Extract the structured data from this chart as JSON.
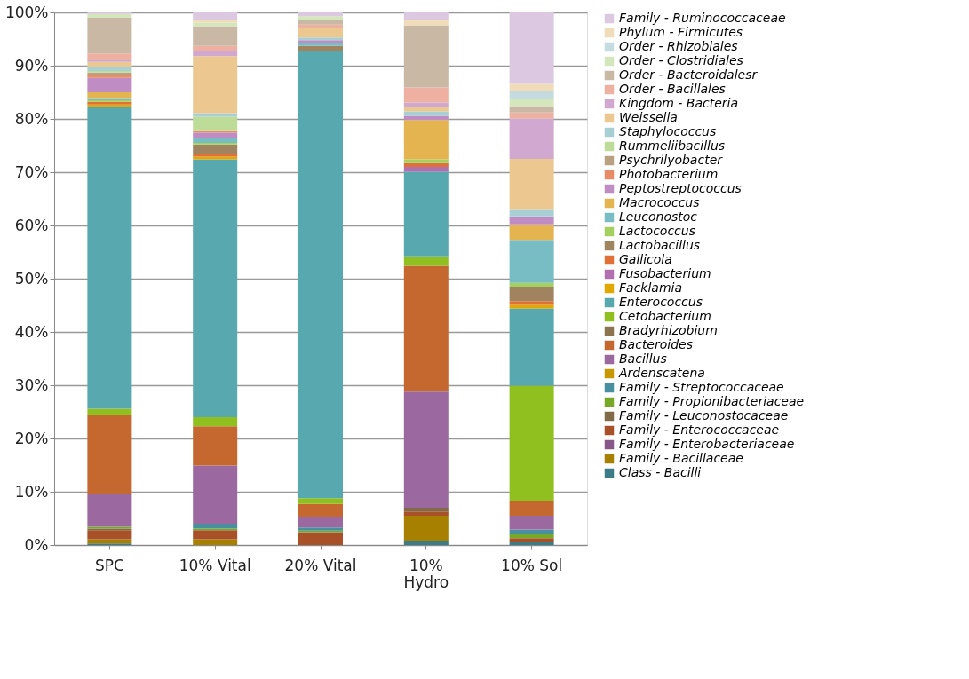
{
  "chart_data": {
    "type": "bar",
    "stacked": true,
    "categories": [
      "SPC",
      "10% Vital",
      "20% Vital",
      "10%\nHydro",
      "10% Sol"
    ],
    "ylim": [
      0,
      100
    ],
    "yticks": [
      {
        "value": 0,
        "label": "0%"
      },
      {
        "value": 10,
        "label": "10%"
      },
      {
        "value": 20,
        "label": "20%"
      },
      {
        "value": 30,
        "label": "30%"
      },
      {
        "value": 40,
        "label": "40%"
      },
      {
        "value": 50,
        "label": "50%"
      },
      {
        "value": 60,
        "label": "60%"
      },
      {
        "value": 70,
        "label": "70%"
      },
      {
        "value": 80,
        "label": "80%"
      },
      {
        "value": 90,
        "label": "90%"
      },
      {
        "value": 100,
        "label": "100%"
      }
    ],
    "grid": "y",
    "legend": "right",
    "series": [
      {
        "name": "Class - Bacilli",
        "color": "#3c7c88",
        "values": [
          0.3,
          null,
          null,
          0.8,
          0.5
        ]
      },
      {
        "name": "Family - Bacillaceae",
        "color": "#a88000",
        "values": [
          0.8,
          1.1,
          null,
          4.7,
          null
        ]
      },
      {
        "name": "Family - Enterobacteriaceae",
        "color": "#885888",
        "values": [
          null,
          null,
          null,
          null,
          null
        ]
      },
      {
        "name": "Family - Enterococcaceae",
        "color": "#a85028",
        "values": [
          1.7,
          1.7,
          2.4,
          0.8,
          0.8
        ]
      },
      {
        "name": "Family - Leuconostocaceae",
        "color": "#806a48",
        "values": [
          0.3,
          null,
          null,
          0.7,
          null
        ]
      },
      {
        "name": "Family - Propionibacteriaceae",
        "color": "#78a828",
        "values": [
          0.3,
          0.3,
          0.3,
          null,
          0.7
        ]
      },
      {
        "name": "Family - Streptococcaceae",
        "color": "#4890a0",
        "values": [
          null,
          0.9,
          0.6,
          null,
          0.9
        ]
      },
      {
        "name": "Ardenscatena",
        "color": "#c89800",
        "values": [
          null,
          null,
          null,
          null,
          null
        ]
      },
      {
        "name": "Bacillus",
        "color": "#9c68a0",
        "values": [
          6.1,
          10.9,
          1.9,
          21.8,
          2.6
        ]
      },
      {
        "name": "Bacteroides",
        "color": "#c46830",
        "values": [
          14.9,
          7.4,
          2.5,
          23.6,
          2.8
        ]
      },
      {
        "name": "Bradyrhizobium",
        "color": "#8c7450",
        "values": [
          null,
          null,
          null,
          null,
          null
        ]
      },
      {
        "name": "Cetobacterium",
        "color": "#90c020",
        "values": [
          1.2,
          1.7,
          1.1,
          1.8,
          21.6
        ]
      },
      {
        "name": "Enterococcus",
        "color": "#58a8b0",
        "values": [
          56.6,
          48.4,
          83.9,
          15.9,
          14.5
        ]
      },
      {
        "name": "Facklamia",
        "color": "#e0a800",
        "values": [
          0.5,
          0.5,
          null,
          null,
          0.7
        ]
      },
      {
        "name": "Fusobacterium",
        "color": "#b070b0",
        "values": [
          null,
          null,
          null,
          0.9,
          null
        ]
      },
      {
        "name": "Gallicola",
        "color": "#e07038",
        "values": [
          0.5,
          0.5,
          null,
          0.7,
          0.7
        ]
      },
      {
        "name": "Lactobacillus",
        "color": "#a08460",
        "values": [
          null,
          1.8,
          1.0,
          null,
          2.7
        ]
      },
      {
        "name": "Lactococcus",
        "color": "#a4d060",
        "values": [
          0.3,
          0.3,
          null,
          0.7,
          0.7
        ]
      },
      {
        "name": "Leuconostoc",
        "color": "#78bcc4",
        "values": [
          0.4,
          1.0,
          0.5,
          null,
          8.1
        ]
      },
      {
        "name": "Macrococcus",
        "color": "#e4b450",
        "values": [
          1.1,
          null,
          null,
          7.4,
          2.9
        ]
      },
      {
        "name": "Peptostreptococcus",
        "color": "#c08cc4",
        "values": [
          2.7,
          0.9,
          0.6,
          0.8,
          1.5
        ]
      },
      {
        "name": "Photobacterium",
        "color": "#e88c68",
        "values": [
          0.5,
          0.3,
          null,
          null,
          null
        ]
      },
      {
        "name": "Psychrilyobacter",
        "color": "#b8a080",
        "values": [
          0.5,
          null,
          null,
          null,
          null
        ]
      },
      {
        "name": "Rummeliibacillus",
        "color": "#bcdc98",
        "values": [
          0.3,
          2.7,
          null,
          null,
          null
        ]
      },
      {
        "name": "Staphylococcus",
        "color": "#a8d0d4",
        "values": [
          0.7,
          0.7,
          0.5,
          0.8,
          1.2
        ]
      },
      {
        "name": "Weissella",
        "color": "#ecc890",
        "values": [
          1.0,
          10.7,
          1.7,
          0.9,
          9.6
        ]
      },
      {
        "name": "Kingdom - Bacteria",
        "color": "#d0a8d0",
        "values": [
          0.3,
          1.0,
          null,
          0.8,
          7.6
        ]
      },
      {
        "name": "Order - Bacillales",
        "color": "#eeb0a0",
        "values": [
          1.3,
          0.9,
          0.7,
          2.8,
          1.1
        ]
      },
      {
        "name": "Order - Bacteroidalesr",
        "color": "#c8b8a4",
        "values": [
          6.7,
          3.7,
          0.8,
          11.7,
          1.2
        ]
      },
      {
        "name": "Order - Clostridiales",
        "color": "#d4e6bc",
        "values": [
          0.7,
          0.7,
          0.8,
          null,
          1.4
        ]
      },
      {
        "name": "Order - Rhizobiales",
        "color": "#c4dce0",
        "values": [
          null,
          null,
          null,
          null,
          1.4
        ]
      },
      {
        "name": "Phylum - Firmicutes",
        "color": "#f0dcb8",
        "values": [
          null,
          0.5,
          null,
          1.0,
          1.4
        ]
      },
      {
        "name": "Family - Ruminococcaceae",
        "color": "#dcc8e0",
        "values": [
          0.3,
          1.4,
          0.7,
          1.4,
          13.4
        ]
      }
    ]
  }
}
